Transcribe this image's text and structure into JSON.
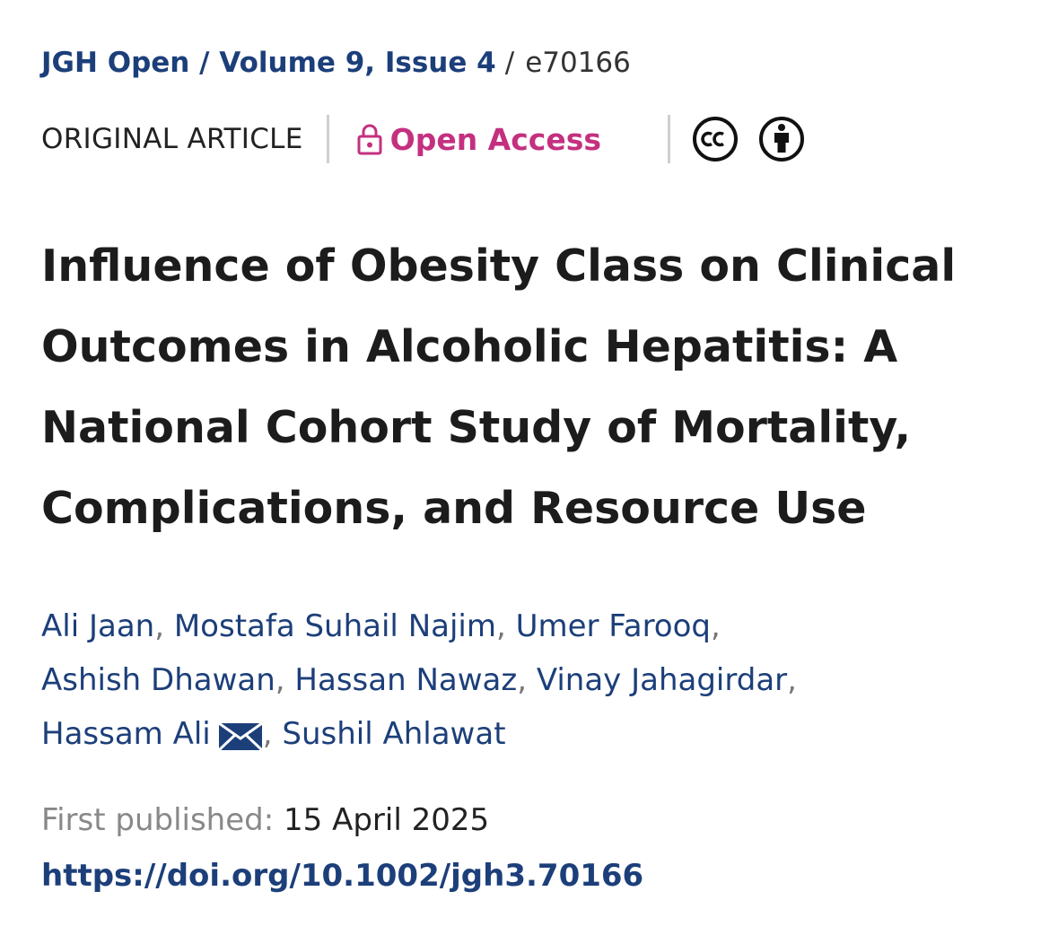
{
  "breadcrumb": {
    "journal": "JGH Open",
    "separator": " / ",
    "issue": "Volume 9, Issue 4",
    "slash": "/",
    "article_id": "e70166"
  },
  "meta": {
    "article_type": "ORIGINAL ARTICLE",
    "access_label": "Open Access",
    "access_color": "#c4307f",
    "icons": [
      "lock-icon",
      "creative-commons-icon",
      "attribution-icon"
    ]
  },
  "title": "Influence of Obesity Class on Clinical Outcomes in Alcoholic Hepatitis: A National Cohort Study of Mortality, Complications, and Resource Use",
  "authors": [
    "Ali Jaan",
    "Mostafa Suhail Najim",
    "Umer Farooq",
    "Ashish Dhawan",
    "Hassan Nawaz",
    "Vinay Jahagirdar",
    "Hassam Ali",
    "Sushil Ahlawat"
  ],
  "published": {
    "label": "First published:",
    "date": "15 April 2025"
  },
  "doi": "https://doi.org/10.1002/jgh3.70166",
  "colors": {
    "link": "#1c3f7a",
    "text": "#1c1c1c"
  }
}
